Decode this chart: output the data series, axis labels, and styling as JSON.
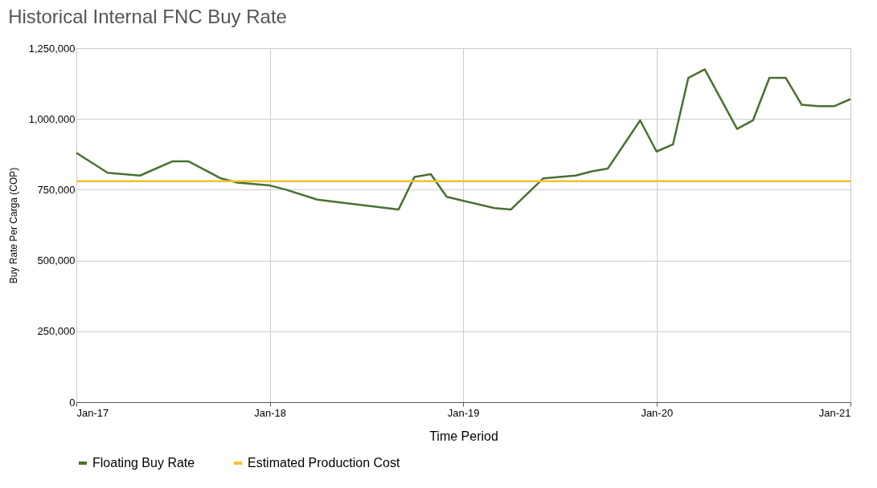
{
  "chart_data": {
    "type": "line",
    "title": "Historical Internal FNC Buy Rate",
    "xlabel": "Time Period",
    "ylabel": "Buy Rate Per Carga (COP)",
    "series": [
      {
        "name": "Floating Buy Rate",
        "color": "#4a7031",
        "x": [
          "2017-01",
          "2017-03",
          "2017-05",
          "2017-07",
          "2017-08",
          "2017-10",
          "2017-11",
          "2018-01",
          "2018-02",
          "2018-04",
          "2018-09",
          "2018-10",
          "2018-11",
          "2018-12",
          "2019-03",
          "2019-04",
          "2019-06",
          "2019-08",
          "2019-09",
          "2019-10",
          "2019-12",
          "2020-01",
          "2020-02",
          "2020-03",
          "2020-04",
          "2020-06",
          "2020-07",
          "2020-08",
          "2020-09",
          "2020-10",
          "2020-11",
          "2020-12",
          "2021-01"
        ],
        "values": [
          880000,
          810000,
          800000,
          850000,
          850000,
          790000,
          775000,
          765000,
          750000,
          715000,
          680000,
          795000,
          805000,
          725000,
          685000,
          680000,
          790000,
          800000,
          815000,
          825000,
          995000,
          885000,
          910000,
          1145000,
          1175000,
          965000,
          995000,
          1145000,
          1145000,
          1050000,
          1045000,
          1045000,
          1070000
        ]
      },
      {
        "name": "Estimated Production Cost",
        "color": "#f2c12e",
        "x": [
          "2017-01",
          "2021-01"
        ],
        "values": [
          780000,
          780000
        ]
      }
    ],
    "xlim": [
      "2017-01",
      "2021-01"
    ],
    "xticks": [
      {
        "value": "2017-01",
        "label": "Jan-17"
      },
      {
        "value": "2018-01",
        "label": "Jan-18"
      },
      {
        "value": "2019-01",
        "label": "Jan-19"
      },
      {
        "value": "2020-01",
        "label": "Jan-20"
      },
      {
        "value": "2021-01",
        "label": "Jan-21"
      }
    ],
    "ylim": [
      0,
      1250000
    ],
    "yticks": [
      0,
      {
        "value": 250000,
        "label": "250,000"
      },
      {
        "value": 500000,
        "label": "500,000"
      },
      {
        "value": 750000,
        "label": "750,000"
      },
      {
        "value": 1000000,
        "label": "1,000,000"
      },
      {
        "value": 1250000,
        "label": "1,250,000"
      }
    ],
    "grid": true,
    "legend": "bottom",
    "line_style": "solid"
  }
}
